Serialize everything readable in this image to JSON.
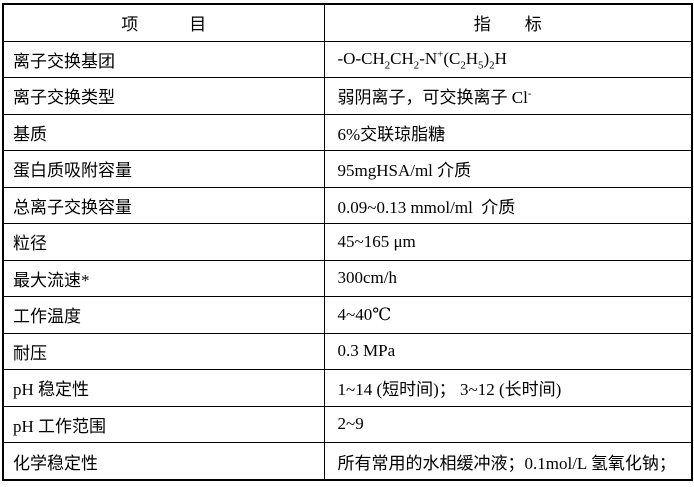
{
  "colors": {
    "background": "#ffffff",
    "border": "#000000",
    "text": "#000000"
  },
  "table": {
    "headers": {
      "item": "项　　　目",
      "value": "指　　标"
    },
    "rows": [
      {
        "item": "离子交换基团",
        "value_rich": [
          {
            "t": "-O-CH"
          },
          {
            "t": "2",
            "s": "sub"
          },
          {
            "t": "CH"
          },
          {
            "t": "2",
            "s": "sub"
          },
          {
            "t": "-N"
          },
          {
            "t": "+",
            "s": "sup"
          },
          {
            "t": "(C"
          },
          {
            "t": "2",
            "s": "sub"
          },
          {
            "t": "H"
          },
          {
            "t": "5",
            "s": "sub"
          },
          {
            "t": ")"
          },
          {
            "t": "2",
            "s": "sub"
          },
          {
            "t": "H"
          }
        ]
      },
      {
        "item": "离子交换类型",
        "value_rich": [
          {
            "t": "弱阴离子，可交换离子 Cl"
          },
          {
            "t": "-",
            "s": "sup"
          }
        ]
      },
      {
        "item": "基质",
        "value": "6%交联琼脂糖"
      },
      {
        "item": "蛋白质吸附容量",
        "value": "95mgHSA/ml 介质"
      },
      {
        "item": "总离子交换容量",
        "value": "0.09~0.13 mmol/ml  介质"
      },
      {
        "item": "粒径",
        "value": "45~165 μm"
      },
      {
        "item": "最大流速*",
        "value": "300cm/h"
      },
      {
        "item": "工作温度",
        "value": "4~40℃"
      },
      {
        "item": "耐压",
        "value": "0.3 MPa"
      },
      {
        "item": "pH 稳定性",
        "value": "1~14 (短时间)； 3~12 (长时间)"
      },
      {
        "item": "pH 工作范围",
        "value": "2~9"
      },
      {
        "item": "化学稳定性",
        "value": "所有常用的水相缓冲液；0.1mol/L 氢氧化钠；"
      }
    ]
  }
}
